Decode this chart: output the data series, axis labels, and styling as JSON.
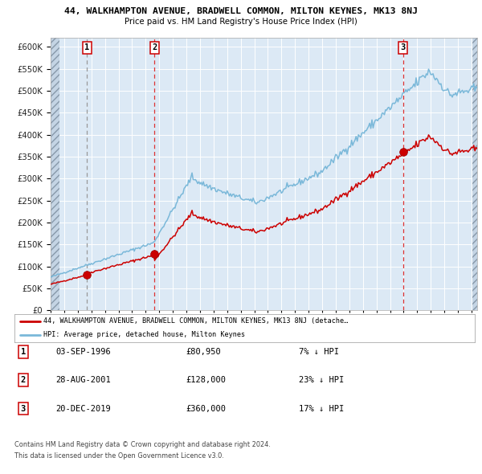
{
  "title": "44, WALKHAMPTON AVENUE, BRADWELL COMMON, MILTON KEYNES, MK13 8NJ",
  "subtitle": "Price paid vs. HM Land Registry's House Price Index (HPI)",
  "sales": [
    {
      "date": "1996-09-03",
      "price": 80950,
      "label": "1"
    },
    {
      "date": "2001-08-28",
      "price": 128000,
      "label": "2"
    },
    {
      "date": "2019-12-20",
      "price": 360000,
      "label": "3"
    }
  ],
  "sale_annotations": [
    {
      "label": "1",
      "date": "03-SEP-1996",
      "price": "£80,950",
      "hpi_diff": "7% ↓ HPI"
    },
    {
      "label": "2",
      "date": "28-AUG-2001",
      "price": "£128,000",
      "hpi_diff": "23% ↓ HPI"
    },
    {
      "label": "3",
      "date": "20-DEC-2019",
      "price": "£360,000",
      "hpi_diff": "17% ↓ HPI"
    }
  ],
  "hpi_line_color": "#7ab8d9",
  "price_line_color": "#cc0000",
  "sale_dot_color": "#cc0000",
  "plot_bg": "#dce9f5",
  "hatch_bg": "#c4d4e4",
  "ylim": [
    0,
    620000
  ],
  "yticks": [
    0,
    50000,
    100000,
    150000,
    200000,
    250000,
    300000,
    350000,
    400000,
    450000,
    500000,
    550000,
    600000
  ],
  "legend_property": "44, WALKHAMPTON AVENUE, BRADWELL COMMON, MILTON KEYNES, MK13 8NJ (detache…",
  "legend_hpi": "HPI: Average price, detached house, Milton Keynes",
  "footer1": "Contains HM Land Registry data © Crown copyright and database right 2024.",
  "footer2": "This data is licensed under the Open Government Licence v3.0.",
  "fig_width": 6.0,
  "fig_height": 5.9,
  "dpi": 100
}
